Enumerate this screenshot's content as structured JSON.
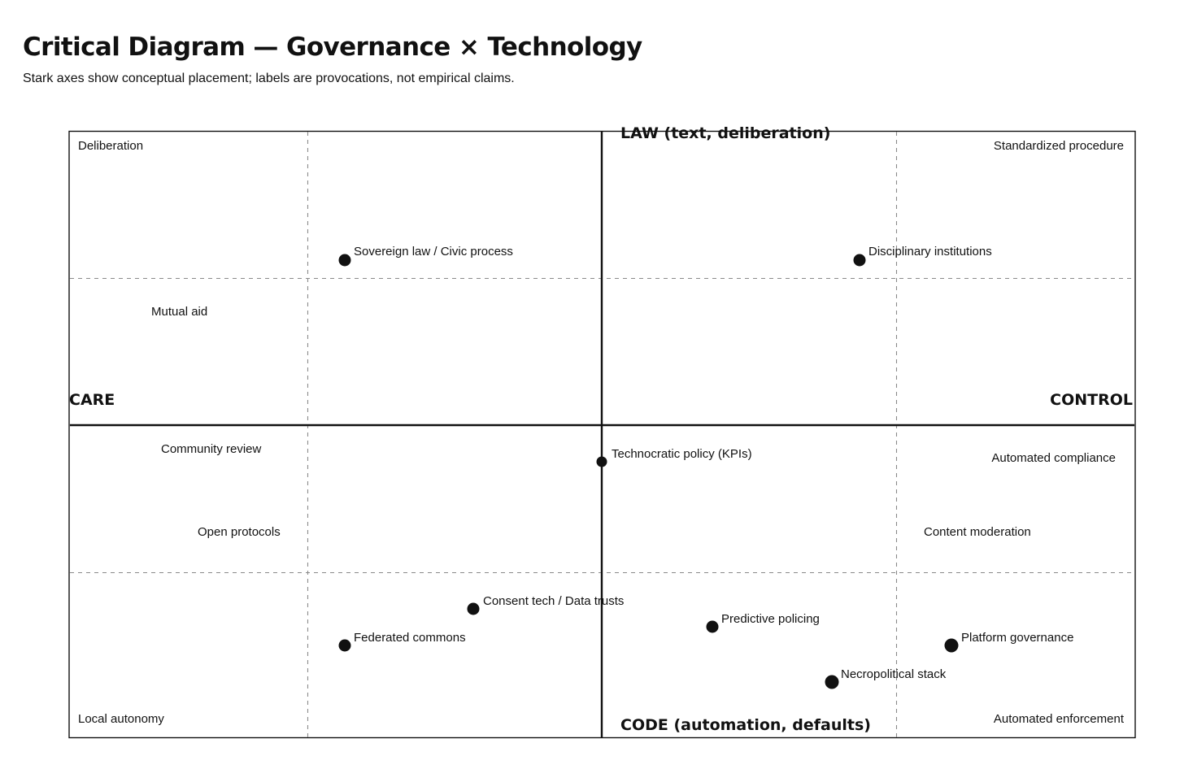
{
  "header": {
    "title": "Critical Diagram — Governance × Technology",
    "subtitle": "Stark axes show conceptual placement; labels are provocations, not empirical claims."
  },
  "diagram": {
    "axes": {
      "top": "LAW (text, deliberation)",
      "bottom": "CODE (automation, defaults)",
      "left": "CARE",
      "right": "CONTROL"
    },
    "region_labels": [
      "Deliberation",
      "Standardized procedure",
      "Mutual aid",
      "Community review",
      "Automated compliance",
      "Open protocols",
      "Content moderation",
      "Local autonomy",
      "Automated enforcement"
    ],
    "points": [
      "Sovereign law / Civic process",
      "Disciplinary institutions",
      "Technocratic policy (KPIs)",
      "Consent tech / Data trusts",
      "Federated commons",
      "Predictive policing",
      "Platform governance",
      "Necropolitical stack"
    ]
  }
}
